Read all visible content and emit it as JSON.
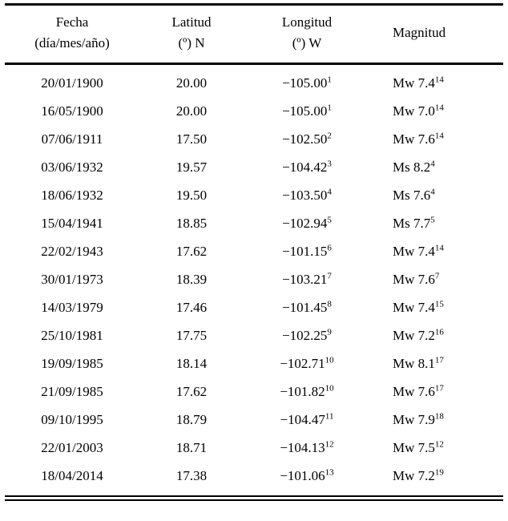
{
  "table": {
    "headers": {
      "fecha": {
        "line1": "Fecha",
        "line2": "(día/mes/año)"
      },
      "latitud": {
        "line1": "Latitud",
        "line2": "(º) N"
      },
      "longitud": {
        "line1": "Longitud",
        "line2": "(º) W"
      },
      "magnitud": {
        "line1": "Magnitud"
      }
    },
    "rows": [
      {
        "fecha": "20/01/1900",
        "latitud": "20.00",
        "longitud": "−105.00",
        "longitud_ref": "1",
        "magnitud": "Mw 7.4",
        "magnitud_ref": "14"
      },
      {
        "fecha": "16/05/1900",
        "latitud": "20.00",
        "longitud": "−105.00",
        "longitud_ref": "1",
        "magnitud": "Mw 7.0",
        "magnitud_ref": "14"
      },
      {
        "fecha": "07/06/1911",
        "latitud": "17.50",
        "longitud": "−102.50",
        "longitud_ref": "2",
        "magnitud": "Mw 7.6",
        "magnitud_ref": "14"
      },
      {
        "fecha": "03/06/1932",
        "latitud": "19.57",
        "longitud": "−104.42",
        "longitud_ref": "3",
        "magnitud": "Ms 8.2",
        "magnitud_ref": "4"
      },
      {
        "fecha": "18/06/1932",
        "latitud": "19.50",
        "longitud": "−103.50",
        "longitud_ref": "4",
        "magnitud": "Ms 7.6",
        "magnitud_ref": "4"
      },
      {
        "fecha": "15/04/1941",
        "latitud": "18.85",
        "longitud": "−102.94",
        "longitud_ref": "5",
        "magnitud": "Ms 7.7",
        "magnitud_ref": "5"
      },
      {
        "fecha": "22/02/1943",
        "latitud": "17.62",
        "longitud": "−101.15",
        "longitud_ref": "6",
        "magnitud": "Mw 7.4",
        "magnitud_ref": "14"
      },
      {
        "fecha": "30/01/1973",
        "latitud": "18.39",
        "longitud": "−103.21",
        "longitud_ref": "7",
        "magnitud": "Mw 7.6",
        "magnitud_ref": "7"
      },
      {
        "fecha": "14/03/1979",
        "latitud": "17.46",
        "longitud": "−101.45",
        "longitud_ref": "8",
        "magnitud": "Mw 7.4",
        "magnitud_ref": "15"
      },
      {
        "fecha": "25/10/1981",
        "latitud": "17.75",
        "longitud": "−102.25",
        "longitud_ref": "9",
        "magnitud": "Mw 7.2",
        "magnitud_ref": "16"
      },
      {
        "fecha": "19/09/1985",
        "latitud": "18.14",
        "longitud": "−102.71",
        "longitud_ref": "10",
        "magnitud": "Mw 8.1",
        "magnitud_ref": "17"
      },
      {
        "fecha": "21/09/1985",
        "latitud": "17.62",
        "longitud": "−101.82",
        "longitud_ref": "10",
        "magnitud": "Mw 7.6",
        "magnitud_ref": "17"
      },
      {
        "fecha": "09/10/1995",
        "latitud": "18.79",
        "longitud": "−104.47",
        "longitud_ref": "11",
        "magnitud": "Mw 7.9",
        "magnitud_ref": "18"
      },
      {
        "fecha": "22/01/2003",
        "latitud": "18.71",
        "longitud": "−104.13",
        "longitud_ref": "12",
        "magnitud": "Mw 7.5",
        "magnitud_ref": "12"
      },
      {
        "fecha": "18/04/2014",
        "latitud": "17.38",
        "longitud": "−101.06",
        "longitud_ref": "13",
        "magnitud": "Mw 7.2",
        "magnitud_ref": "19"
      }
    ]
  }
}
